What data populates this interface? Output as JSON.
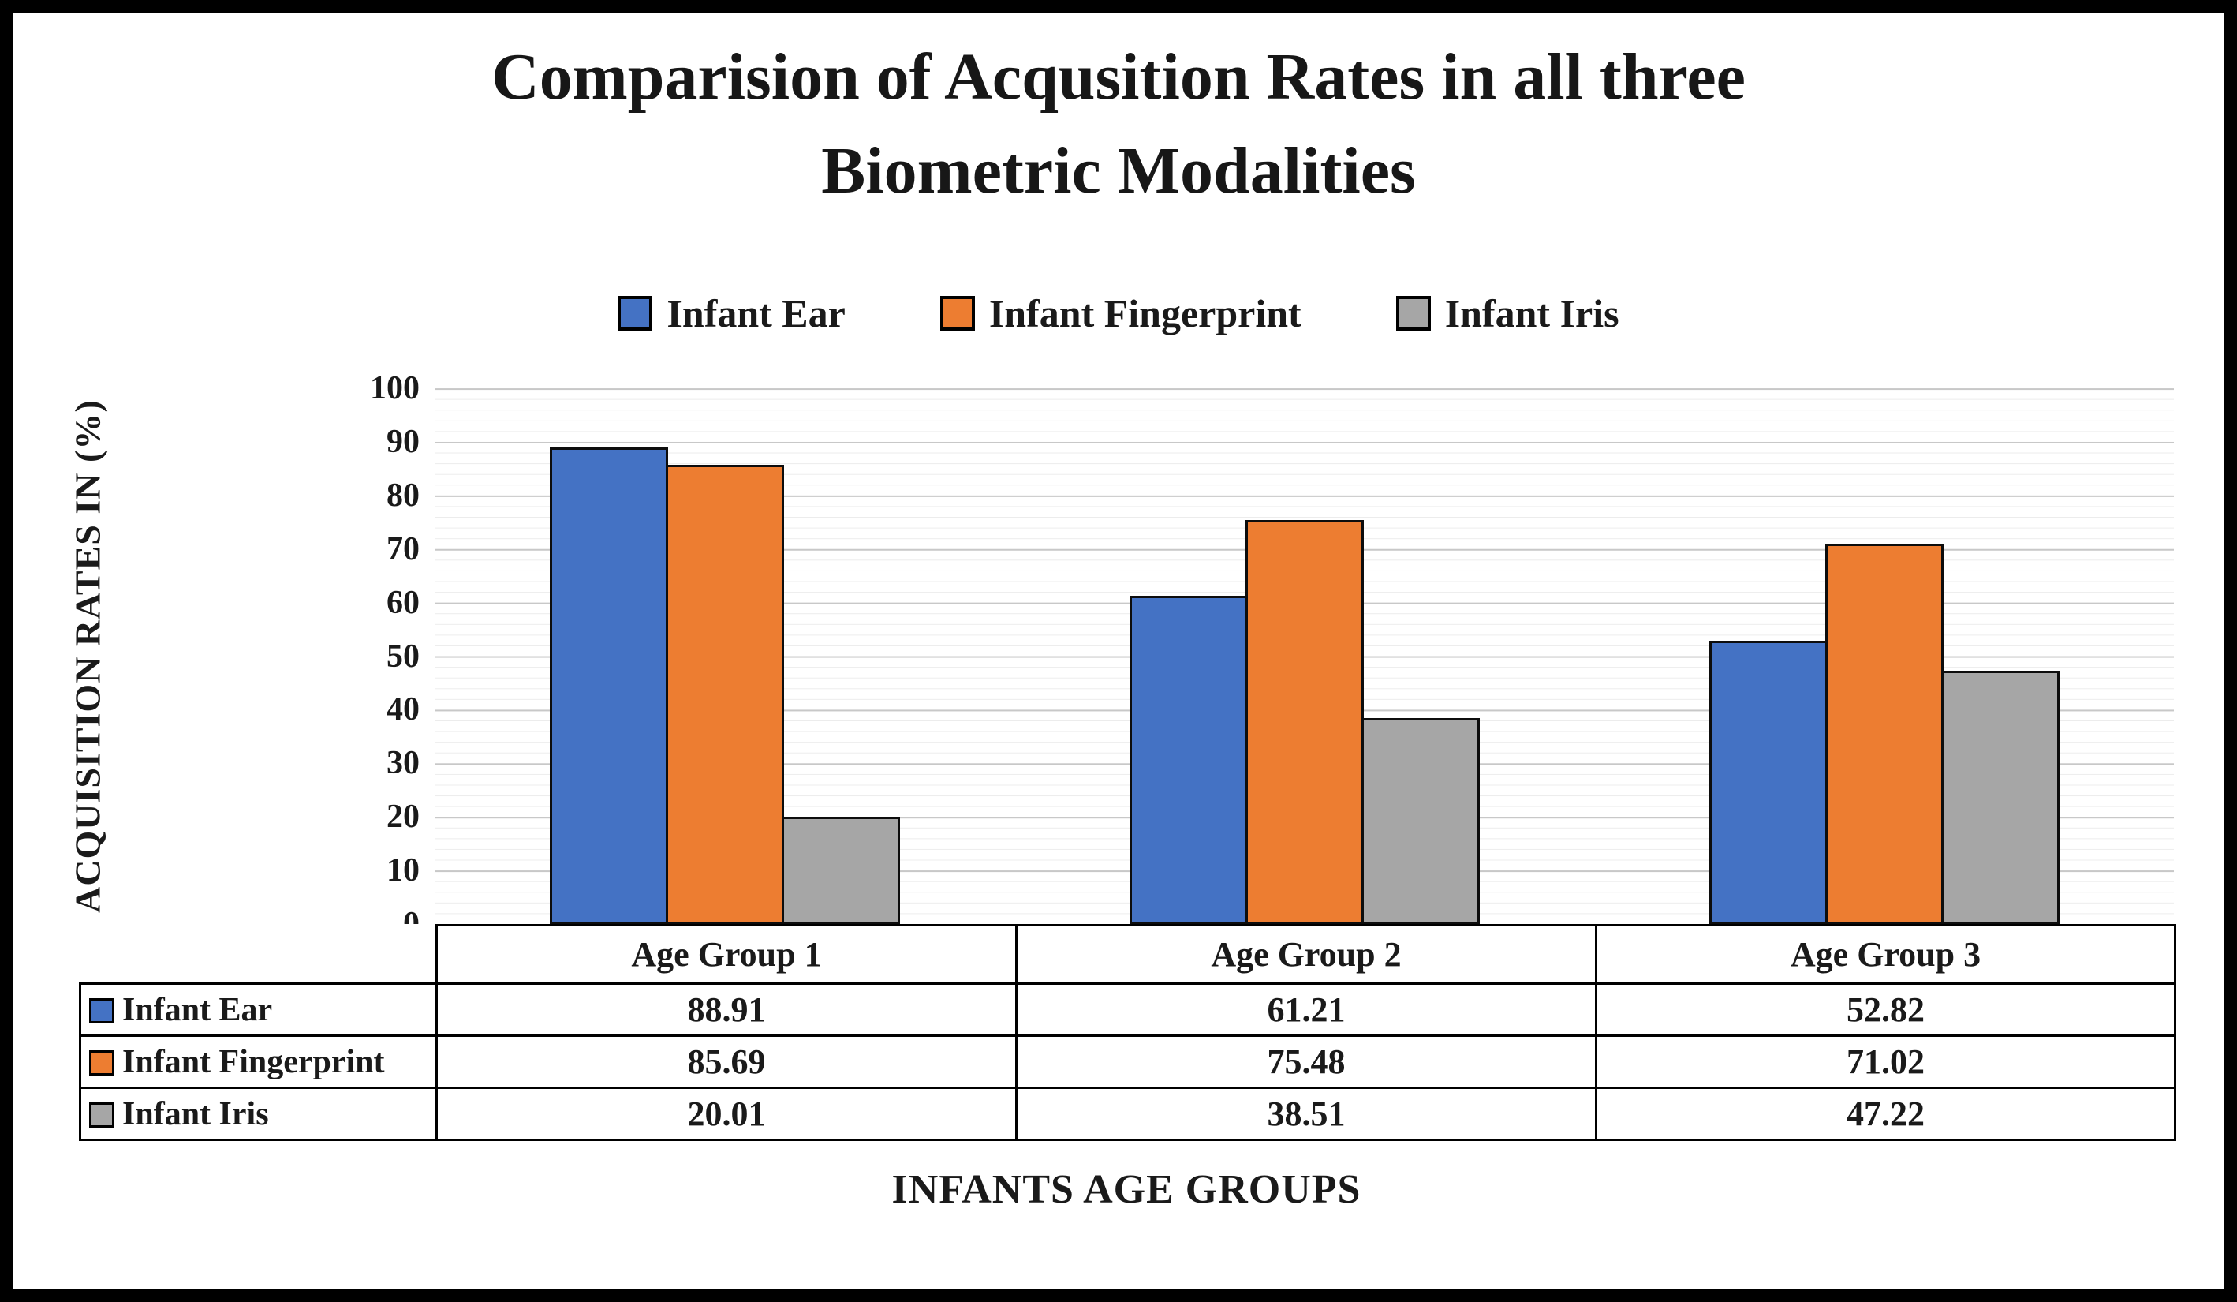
{
  "chart_data": {
    "type": "bar",
    "title": "Comparision of Acqusition Rates in all three Biometric Modalities",
    "title_lines": [
      "Comparision of Acqusition Rates in all three",
      "Biometric Modalities"
    ],
    "xlabel": "INFANTS AGE GROUPS",
    "ylabel": "ACQUISITION RATES IN (%)",
    "ylim": [
      0,
      100
    ],
    "ytick_step": 10,
    "yticks": [
      0,
      10,
      20,
      30,
      40,
      50,
      60,
      70,
      80,
      90,
      100
    ],
    "grid": true,
    "minor_grid": true,
    "legend_position": "top",
    "data_table_shown": true,
    "categories": [
      "Age Group 1",
      "Age Group 2",
      "Age Group 3"
    ],
    "series": [
      {
        "name": "Infant Ear",
        "color": "#4472C4",
        "values": [
          88.91,
          61.21,
          52.82
        ]
      },
      {
        "name": "Infant Fingerprint",
        "color": "#ED7D31",
        "values": [
          85.69,
          75.48,
          71.02
        ]
      },
      {
        "name": "Infant Iris",
        "color": "#A6A6A6",
        "values": [
          20.01,
          38.51,
          47.22
        ]
      }
    ],
    "colors": {
      "bar_border": "#0d0d0d",
      "grid_major": "#c8c8c8",
      "grid_minor": "#ececec",
      "frame": "#000000"
    }
  }
}
